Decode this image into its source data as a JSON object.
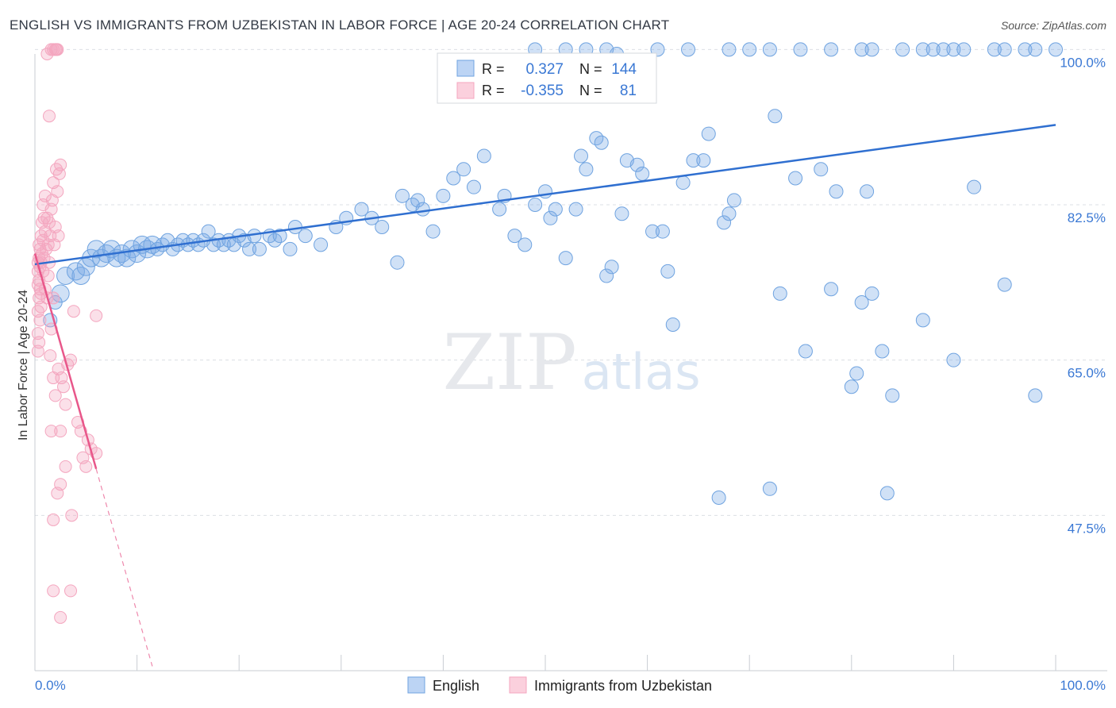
{
  "chart_data": {
    "type": "scatter",
    "title": "ENGLISH VS IMMIGRANTS FROM UZBEKISTAN IN LABOR FORCE | AGE 20-24 CORRELATION CHART",
    "source": "Source: ZipAtlas.com",
    "watermark": "ZIPatlas",
    "ylabel": "In Labor Force | Age 20-24",
    "xlabel": "",
    "xlim": [
      0,
      100
    ],
    "ylim": [
      30.0,
      102.0
    ],
    "x_tick_labels": [
      "0.0%",
      "100.0%"
    ],
    "y_ticks": [
      100.0,
      82.5,
      65.0,
      47.5
    ],
    "y_tick_labels": [
      "100.0%",
      "82.5%",
      "65.0%",
      "47.5%"
    ],
    "grid": true,
    "legend_position": "bottom",
    "stats_box": [
      {
        "r_label": "R =",
        "r": "0.327",
        "n_label": "N =",
        "n": "144"
      },
      {
        "r_label": "R =",
        "r": "-0.355",
        "n_label": "N =",
        "n": "81"
      }
    ],
    "series": [
      {
        "name": "English",
        "color": "#6fa3e0",
        "line_color": "#2f6fd0",
        "trend": {
          "x": [
            0,
            100
          ],
          "y": [
            75.8,
            91.5
          ],
          "dashed_after": null
        },
        "points": [
          [
            1.5,
            69.5
          ],
          [
            2,
            71.5
          ],
          [
            2.5,
            72.5
          ],
          [
            3,
            74.5
          ],
          [
            4,
            75
          ],
          [
            4.5,
            74.5
          ],
          [
            5,
            75.5
          ],
          [
            5.5,
            76.5
          ],
          [
            6,
            77.5
          ],
          [
            6.5,
            76.5
          ],
          [
            7,
            77
          ],
          [
            7.5,
            77.5
          ],
          [
            8,
            76.5
          ],
          [
            8.5,
            77
          ],
          [
            9,
            76.5
          ],
          [
            9.5,
            77.5
          ],
          [
            10,
            77
          ],
          [
            10.5,
            78
          ],
          [
            11,
            77.5
          ],
          [
            11.5,
            78
          ],
          [
            12,
            77.5
          ],
          [
            12.5,
            78
          ],
          [
            13,
            78.5
          ],
          [
            13.5,
            77.5
          ],
          [
            14,
            78
          ],
          [
            14.5,
            78.5
          ],
          [
            15,
            78
          ],
          [
            15.5,
            78.5
          ],
          [
            16,
            78
          ],
          [
            16.5,
            78.5
          ],
          [
            17,
            79.5
          ],
          [
            17.5,
            78
          ],
          [
            18,
            78.5
          ],
          [
            18.5,
            78
          ],
          [
            19,
            78.5
          ],
          [
            19.5,
            78
          ],
          [
            20,
            79
          ],
          [
            20.5,
            78.5
          ],
          [
            21,
            77.5
          ],
          [
            21.5,
            79
          ],
          [
            22,
            77.5
          ],
          [
            23,
            79
          ],
          [
            23.5,
            78.5
          ],
          [
            24,
            79
          ],
          [
            25,
            77.5
          ],
          [
            25.5,
            80
          ],
          [
            26.5,
            79
          ],
          [
            28,
            78
          ],
          [
            29.5,
            80
          ],
          [
            30.5,
            81
          ],
          [
            32,
            82
          ],
          [
            33,
            81
          ],
          [
            34,
            80
          ],
          [
            35.5,
            76
          ],
          [
            36,
            83.5
          ],
          [
            37,
            82.5
          ],
          [
            37.5,
            83
          ],
          [
            38,
            82
          ],
          [
            39,
            79.5
          ],
          [
            40,
            83.5
          ],
          [
            41,
            85.5
          ],
          [
            42,
            86.5
          ],
          [
            43,
            84.5
          ],
          [
            44,
            88
          ],
          [
            45.5,
            82
          ],
          [
            46,
            83.5
          ],
          [
            47,
            79
          ],
          [
            48,
            78
          ],
          [
            49,
            82.5
          ],
          [
            50,
            84
          ],
          [
            50.5,
            81
          ],
          [
            51,
            82
          ],
          [
            52,
            76.5
          ],
          [
            53,
            82
          ],
          [
            53.5,
            88
          ],
          [
            54,
            86.5
          ],
          [
            55,
            90
          ],
          [
            55.5,
            89.5
          ],
          [
            56,
            74.5
          ],
          [
            56.5,
            75.5
          ],
          [
            57.5,
            81.5
          ],
          [
            58,
            87.5
          ],
          [
            59,
            87
          ],
          [
            59.5,
            86
          ],
          [
            60.5,
            79.5
          ],
          [
            61.5,
            79.5
          ],
          [
            62,
            75
          ],
          [
            62.5,
            69
          ],
          [
            63.5,
            85
          ],
          [
            64.5,
            87.5
          ],
          [
            65.5,
            87.5
          ],
          [
            66,
            90.5
          ],
          [
            67,
            49.5
          ],
          [
            67.5,
            80.5
          ],
          [
            68,
            81.5
          ],
          [
            68.5,
            83
          ],
          [
            72,
            50.5
          ],
          [
            72.5,
            92.5
          ],
          [
            73,
            72.5
          ],
          [
            74.5,
            85.5
          ],
          [
            75.5,
            66
          ],
          [
            77,
            86.5
          ],
          [
            78,
            73
          ],
          [
            78.5,
            84
          ],
          [
            80,
            62
          ],
          [
            80.5,
            63.5
          ],
          [
            81,
            71.5
          ],
          [
            81.5,
            84
          ],
          [
            82,
            72.5
          ],
          [
            83,
            66
          ],
          [
            83.5,
            50
          ],
          [
            84,
            61
          ],
          [
            87,
            69.5
          ],
          [
            90,
            65
          ],
          [
            92,
            84.5
          ],
          [
            95,
            73.5
          ],
          [
            98,
            61
          ],
          [
            49,
            100
          ],
          [
            52,
            100
          ],
          [
            54,
            100
          ],
          [
            56,
            100
          ],
          [
            57,
            99.5
          ],
          [
            61,
            100
          ],
          [
            64,
            100
          ],
          [
            68,
            100
          ],
          [
            70,
            100
          ],
          [
            72,
            100
          ],
          [
            75,
            100
          ],
          [
            78,
            100
          ],
          [
            81,
            100
          ],
          [
            82,
            100
          ],
          [
            85,
            100
          ],
          [
            87,
            100
          ],
          [
            88,
            100
          ],
          [
            89,
            100
          ],
          [
            90,
            100
          ],
          [
            91,
            100
          ],
          [
            94,
            100
          ],
          [
            95,
            100
          ],
          [
            97,
            100
          ],
          [
            98,
            100
          ],
          [
            100,
            100
          ]
        ]
      },
      {
        "name": "Immigrants from Uzbekistan",
        "color": "#f4a6bf",
        "line_color": "#e8578a",
        "trend": {
          "x": [
            0,
            11.5
          ],
          "y": [
            77.0,
            30.5
          ],
          "dashed_after": 6.0
        },
        "points": [
          [
            0.3,
            76
          ],
          [
            0.3,
            75
          ],
          [
            0.3,
            73.5
          ],
          [
            0.3,
            70.5
          ],
          [
            0.3,
            68
          ],
          [
            0.3,
            66
          ],
          [
            0.4,
            78
          ],
          [
            0.4,
            76.5
          ],
          [
            0.4,
            74
          ],
          [
            0.4,
            72
          ],
          [
            0.4,
            67
          ],
          [
            0.5,
            77.5
          ],
          [
            0.5,
            75.5
          ],
          [
            0.5,
            73
          ],
          [
            0.5,
            69.5
          ],
          [
            0.6,
            79
          ],
          [
            0.6,
            76
          ],
          [
            0.6,
            72.5
          ],
          [
            0.6,
            71
          ],
          [
            0.7,
            80.5
          ],
          [
            0.7,
            77
          ],
          [
            0.8,
            82.5
          ],
          [
            0.8,
            78.5
          ],
          [
            0.8,
            75
          ],
          [
            0.9,
            81
          ],
          [
            0.9,
            76.5
          ],
          [
            1.0,
            83.5
          ],
          [
            1.0,
            79.5
          ],
          [
            1.0,
            73
          ],
          [
            1.1,
            77.5
          ],
          [
            1.2,
            81
          ],
          [
            1.2,
            72
          ],
          [
            1.3,
            78
          ],
          [
            1.3,
            74.5
          ],
          [
            1.4,
            80.5
          ],
          [
            1.4,
            76
          ],
          [
            1.5,
            79
          ],
          [
            1.6,
            82
          ],
          [
            1.6,
            68.5
          ],
          [
            1.7,
            83
          ],
          [
            1.8,
            85
          ],
          [
            1.8,
            72
          ],
          [
            1.9,
            78
          ],
          [
            2.0,
            80
          ],
          [
            2.1,
            86.5
          ],
          [
            2.2,
            84
          ],
          [
            2.3,
            79
          ],
          [
            2.4,
            86
          ],
          [
            2.5,
            87
          ],
          [
            1.4,
            92.5
          ],
          [
            1.2,
            99.5
          ],
          [
            1.6,
            100
          ],
          [
            1.8,
            100
          ],
          [
            2.0,
            100
          ],
          [
            2.1,
            100
          ],
          [
            2.2,
            100
          ],
          [
            1.5,
            65.5
          ],
          [
            1.8,
            63
          ],
          [
            2.0,
            61
          ],
          [
            2.3,
            64
          ],
          [
            2.6,
            63
          ],
          [
            2.8,
            62
          ],
          [
            3.0,
            60
          ],
          [
            3.2,
            64.5
          ],
          [
            3.5,
            65
          ],
          [
            3.8,
            70.5
          ],
          [
            4.2,
            58
          ],
          [
            4.5,
            57
          ],
          [
            4.7,
            54
          ],
          [
            5.0,
            53
          ],
          [
            5.2,
            56
          ],
          [
            5.5,
            55
          ],
          [
            6.0,
            54.5
          ],
          [
            1.6,
            57
          ],
          [
            2.5,
            57
          ],
          [
            3.0,
            53
          ],
          [
            3.6,
            47.5
          ],
          [
            1.8,
            47
          ],
          [
            2.2,
            50
          ],
          [
            2.5,
            51
          ],
          [
            1.8,
            39
          ],
          [
            2.5,
            36
          ],
          [
            3.5,
            39
          ],
          [
            6.0,
            70
          ]
        ]
      }
    ],
    "legend_entries": [
      "English",
      "Immigrants from Uzbekistan"
    ]
  }
}
